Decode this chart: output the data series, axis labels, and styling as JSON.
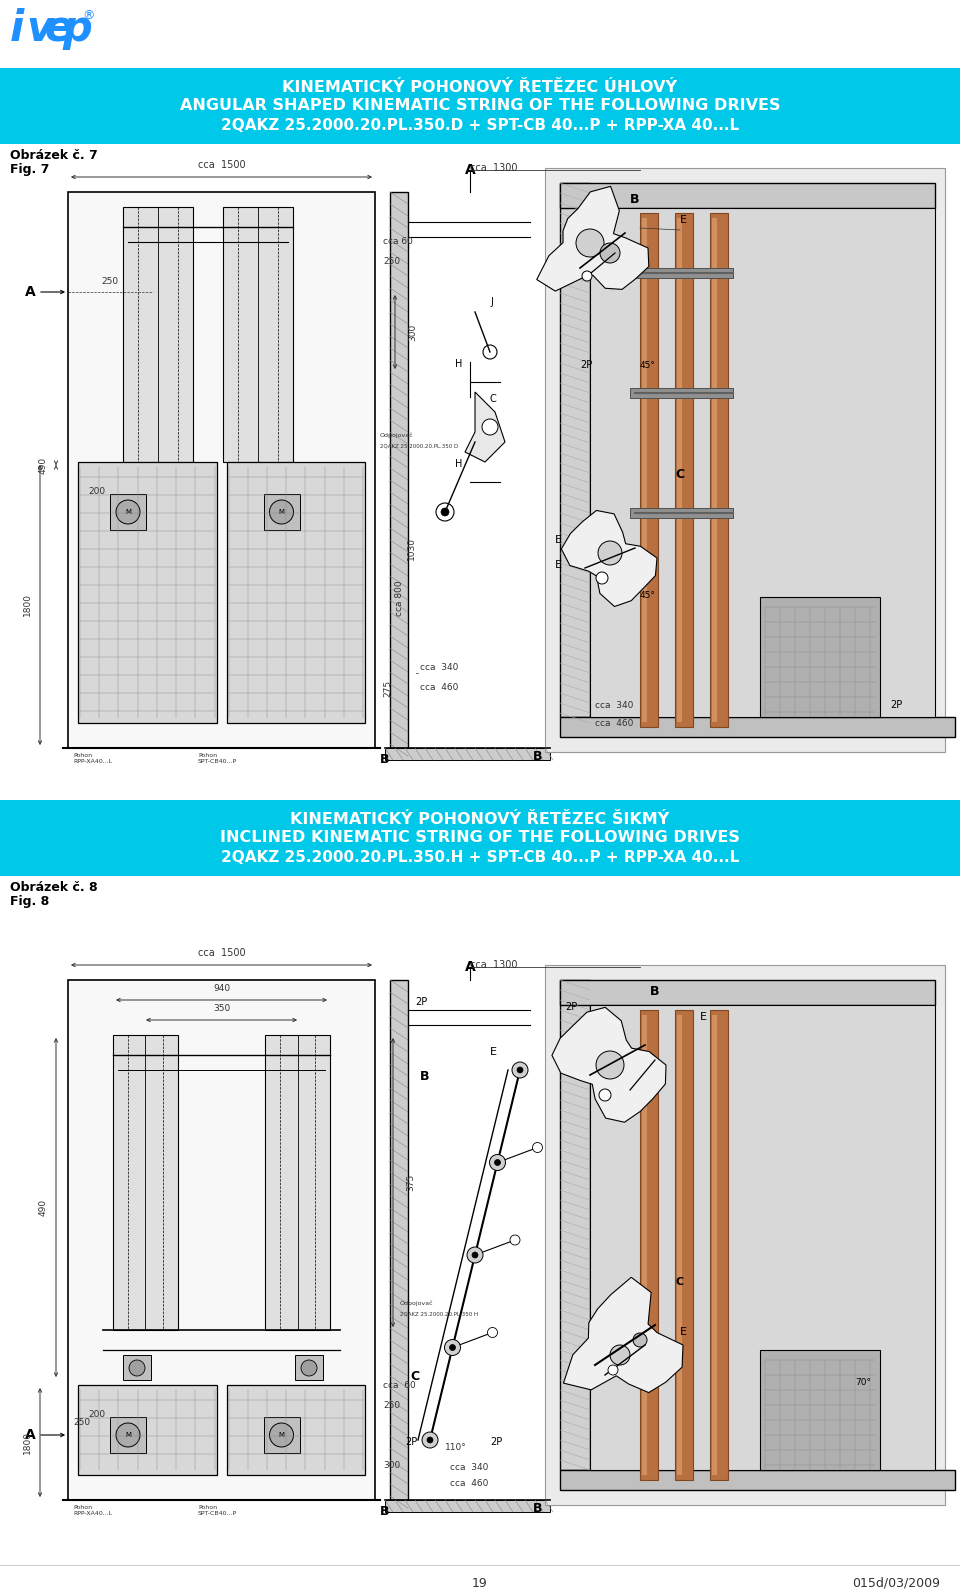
{
  "page_bg": "#ffffff",
  "logo_color": "#1E90FF",
  "header1_bg": "#00C8E8",
  "header1_line1": "KINEMATICKÝ POHONOVÝ ŘETĚZEC ÚHLOVÝ",
  "header1_line2": "ANGULAR SHAPED KINEMATIC STRING OF THE FOLLOWING DRIVES",
  "header1_line3": "2QAKZ 25.2000.20.PL.350.D + SPT-CB 40...P + RPP-XA 40...L",
  "header1_text_color": "#ffffff",
  "fig_label1_line1": "Obrázek č. 7",
  "fig_label1_line2": "Fig. 7",
  "header2_bg": "#00C8E8",
  "header2_line1": "KINEMATICKÝ POHONOVÝ ŘETĚZEC ŠIKMÝ",
  "header2_line2": "INCLINED KINEMATIC STRING OF THE FOLLOWING DRIVES",
  "header2_line3": "2QAKZ 25.2000.20.PL.350.H + SPT-CB 40...P + RPP-XA 40...L",
  "header2_text_color": "#ffffff",
  "fig_label2_line1": "Obrázek č. 8",
  "fig_label2_line2": "Fig. 8",
  "footer_page": "19",
  "footer_doc": "015d/03/2009",
  "draw_color": "#000000",
  "draw_lw": 1.0,
  "dim_color": "#333333",
  "dim_fs": 6.5,
  "label_fs": 8.5
}
